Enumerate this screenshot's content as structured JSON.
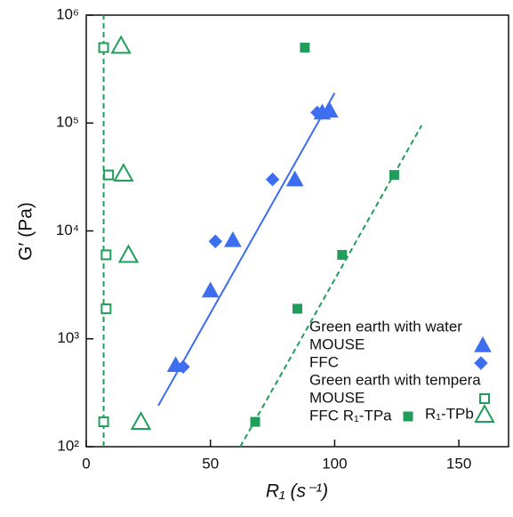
{
  "chart_data": {
    "type": "scatter",
    "xlabel": "R₁ (s⁻¹)",
    "ylabel": "G′ (Pa)",
    "xlim": [
      0,
      170
    ],
    "xticks": [
      0,
      50,
      100,
      150
    ],
    "ylim": [
      100,
      1000000
    ],
    "log_y": true,
    "yticks": [
      {
        "value": 100,
        "label": "10²"
      },
      {
        "value": 1000,
        "label": "10³"
      },
      {
        "value": 10000,
        "label": "10⁴"
      },
      {
        "value": 100000,
        "label": "10⁵"
      },
      {
        "value": 1000000,
        "label": "10⁶"
      }
    ],
    "legend_groups": [
      "Green earth with water",
      "Green earth with tempera"
    ],
    "series": [
      {
        "name": "MOUSE",
        "group": 0,
        "color": "#3d6ef0",
        "marker": "triangle",
        "x": [
          36,
          50,
          59,
          84,
          95,
          98
        ],
        "values": [
          570,
          2800,
          8200,
          30000,
          125000,
          130000
        ]
      },
      {
        "name": "FFC",
        "group": 0,
        "color": "#3d6ef0",
        "marker": "diamond",
        "x": [
          39,
          52,
          75,
          93
        ],
        "values": [
          550,
          8000,
          30000,
          125000
        ]
      },
      {
        "name": "MOUSE",
        "group": 1,
        "color": "#1f9e5a",
        "marker": "square-open",
        "x": [
          7,
          9,
          8,
          8,
          7
        ],
        "values": [
          500000,
          33000,
          6000,
          1900,
          170
        ]
      },
      {
        "name": "FFC R₁-TPa",
        "group": 1,
        "color": "#1f9e5a",
        "marker": "square",
        "x": [
          88,
          124,
          103,
          85,
          68
        ],
        "values": [
          500000,
          33000,
          6000,
          1900,
          170
        ]
      },
      {
        "name": "R₁-TPb",
        "group": 1,
        "color": "#1f9e5a",
        "marker": "triangle-open",
        "x": [
          14,
          15,
          17,
          22
        ],
        "values": [
          520000,
          34000,
          6000,
          170
        ]
      }
    ],
    "fit_lines": [
      {
        "color": "#3d6ef0",
        "dashed": false,
        "x": [
          29,
          100
        ],
        "values": [
          240,
          190000
        ]
      },
      {
        "color": "#1f9e5a",
        "dashed": true,
        "x": [
          62,
          135
        ],
        "values": [
          100,
          95000
        ]
      },
      {
        "color": "#1f9e5a",
        "dashed": true,
        "x": [
          7,
          7
        ],
        "values": [
          100,
          1000000
        ]
      }
    ]
  }
}
